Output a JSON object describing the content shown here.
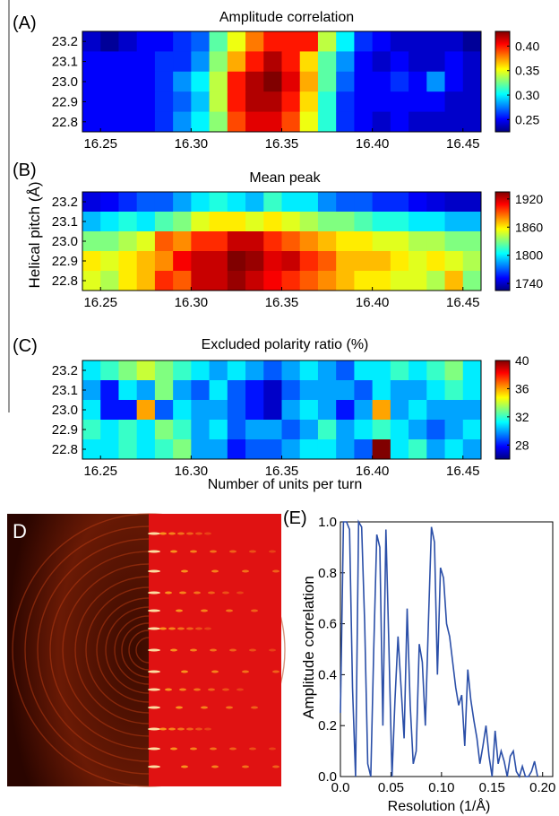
{
  "shared": {
    "ylabel": "Helical pitch (Å)",
    "xlabel": "Number of units per turn"
  },
  "panel_d": {
    "label": "D"
  },
  "chart_data": [
    {
      "type": "heatmap",
      "panel_label": "(A)",
      "title": "Amplitude correlation",
      "x_ticks": [
        "16.25",
        "16.30",
        "16.35",
        "16.40",
        "16.45"
      ],
      "y_ticks": [
        "23.2",
        "23.1",
        "23.0",
        "22.9",
        "22.8"
      ],
      "x_range": [
        16.24,
        16.46
      ],
      "colorbar": {
        "ticks": [
          "0.40",
          "0.35",
          "0.30",
          "0.25"
        ],
        "range": [
          0.225,
          0.43
        ]
      },
      "values": [
        [
          0.24,
          0.23,
          0.24,
          0.25,
          0.25,
          0.26,
          0.27,
          0.32,
          0.35,
          0.38,
          0.4,
          0.4,
          0.4,
          0.34,
          0.3,
          0.26,
          0.25,
          0.24,
          0.24,
          0.24,
          0.24,
          0.23
        ],
        [
          0.25,
          0.25,
          0.25,
          0.25,
          0.26,
          0.26,
          0.28,
          0.33,
          0.37,
          0.4,
          0.42,
          0.4,
          0.36,
          0.32,
          0.28,
          0.25,
          0.24,
          0.25,
          0.24,
          0.24,
          0.25,
          0.24
        ],
        [
          0.25,
          0.25,
          0.25,
          0.25,
          0.26,
          0.28,
          0.3,
          0.34,
          0.4,
          0.42,
          0.43,
          0.41,
          0.37,
          0.32,
          0.27,
          0.25,
          0.25,
          0.26,
          0.25,
          0.28,
          0.25,
          0.24
        ],
        [
          0.25,
          0.25,
          0.25,
          0.25,
          0.26,
          0.27,
          0.29,
          0.34,
          0.4,
          0.42,
          0.42,
          0.4,
          0.36,
          0.31,
          0.26,
          0.25,
          0.25,
          0.25,
          0.25,
          0.25,
          0.24,
          0.24
        ],
        [
          0.25,
          0.25,
          0.25,
          0.25,
          0.26,
          0.28,
          0.3,
          0.33,
          0.39,
          0.41,
          0.41,
          0.39,
          0.35,
          0.31,
          0.26,
          0.25,
          0.24,
          0.25,
          0.24,
          0.24,
          0.24,
          0.24
        ]
      ]
    },
    {
      "type": "heatmap",
      "panel_label": "(B)",
      "title": "Mean peak",
      "x_ticks": [
        "16.25",
        "16.30",
        "16.35",
        "16.40",
        "16.45"
      ],
      "y_ticks": [
        "23.2",
        "23.1",
        "23.0",
        "22.9",
        "22.8"
      ],
      "x_range": [
        16.24,
        16.46
      ],
      "colorbar": {
        "ticks": [
          "1920",
          "1860",
          "1800",
          "1740"
        ],
        "range": [
          1725,
          1935
        ]
      },
      "values": [
        [
          1745,
          1750,
          1760,
          1770,
          1770,
          1785,
          1800,
          1810,
          1800,
          1790,
          1815,
          1800,
          1800,
          1780,
          1770,
          1770,
          1760,
          1760,
          1750,
          1745,
          1740,
          1740
        ],
        [
          1790,
          1800,
          1810,
          1800,
          1820,
          1830,
          1850,
          1860,
          1860,
          1850,
          1860,
          1850,
          1840,
          1830,
          1830,
          1820,
          1810,
          1810,
          1800,
          1800,
          1790,
          1790
        ],
        [
          1830,
          1830,
          1840,
          1850,
          1890,
          1880,
          1900,
          1900,
          1920,
          1920,
          1900,
          1890,
          1880,
          1870,
          1860,
          1860,
          1850,
          1850,
          1840,
          1840,
          1830,
          1830
        ],
        [
          1860,
          1850,
          1860,
          1870,
          1880,
          1910,
          1920,
          1920,
          1935,
          1930,
          1915,
          1920,
          1900,
          1890,
          1870,
          1870,
          1870,
          1860,
          1850,
          1860,
          1850,
          1840
        ],
        [
          1850,
          1840,
          1860,
          1870,
          1900,
          1890,
          1920,
          1920,
          1930,
          1920,
          1910,
          1900,
          1890,
          1880,
          1870,
          1860,
          1860,
          1850,
          1850,
          1840,
          1870,
          1830
        ]
      ]
    },
    {
      "type": "heatmap",
      "panel_label": "(C)",
      "title": "Excluded polarity ratio (%)",
      "x_ticks": [
        "16.25",
        "16.30",
        "16.35",
        "16.40",
        "16.45"
      ],
      "y_ticks": [
        "23.2",
        "23.1",
        "23.0",
        "22.9",
        "22.8"
      ],
      "x_range": [
        16.24,
        16.46
      ],
      "colorbar": {
        "ticks": [
          "40",
          "36",
          "32",
          "28"
        ],
        "range": [
          26,
          40
        ]
      },
      "values": [
        [
          31,
          32,
          33,
          34,
          33,
          32,
          31,
          30,
          31,
          30,
          29,
          30,
          31,
          30,
          29,
          31,
          31,
          32,
          31,
          32,
          33,
          31
        ],
        [
          30,
          28,
          31,
          30,
          33,
          30,
          29,
          31,
          29,
          28,
          27,
          29,
          30,
          30,
          30,
          29,
          31,
          30,
          30,
          31,
          32,
          31
        ],
        [
          31,
          28,
          28,
          36,
          29,
          31,
          30,
          30,
          29,
          28,
          27,
          30,
          31,
          30,
          28,
          30,
          36,
          30,
          31,
          30,
          30,
          30
        ],
        [
          32,
          31,
          32,
          31,
          33,
          32,
          30,
          31,
          29,
          30,
          30,
          29,
          30,
          32,
          30,
          31,
          32,
          31,
          30,
          29,
          30,
          31
        ],
        [
          31,
          31,
          32,
          31,
          32,
          33,
          30,
          30,
          28,
          29,
          29,
          30,
          31,
          31,
          30,
          29,
          40,
          31,
          32,
          30,
          31,
          30
        ]
      ]
    },
    {
      "type": "line",
      "panel_label": "(E)",
      "xlabel": "Resolution (1/Å)",
      "ylabel": "Amplitude correlation",
      "xlim": [
        0.0,
        0.21
      ],
      "ylim": [
        0.0,
        1.0
      ],
      "x_ticks": [
        "0.0",
        "0.05",
        "0.10",
        "0.15",
        "0.20"
      ],
      "y_ticks": [
        "0.0",
        "0.2",
        "0.4",
        "0.6",
        "0.8",
        "1.0"
      ],
      "series": [
        {
          "x": [
            0.0,
            0.003,
            0.006,
            0.009,
            0.012,
            0.015,
            0.018,
            0.021,
            0.024,
            0.027,
            0.03,
            0.033,
            0.036,
            0.039,
            0.042,
            0.045,
            0.048,
            0.051,
            0.054,
            0.057,
            0.06,
            0.063,
            0.066,
            0.069,
            0.072,
            0.075,
            0.078,
            0.081,
            0.084,
            0.087,
            0.09,
            0.093,
            0.096,
            0.099,
            0.102,
            0.105,
            0.108,
            0.111,
            0.114,
            0.117,
            0.12,
            0.123,
            0.126,
            0.129,
            0.132,
            0.135,
            0.138,
            0.141,
            0.144,
            0.147,
            0.15,
            0.153,
            0.156,
            0.159,
            0.162,
            0.165,
            0.168,
            0.171,
            0.174,
            0.177,
            0.18,
            0.183,
            0.186,
            0.189,
            0.192,
            0.195
          ],
          "y": [
            0.25,
            1.0,
            1.0,
            0.97,
            0.35,
            0.0,
            1.0,
            0.98,
            0.6,
            0.05,
            0.0,
            0.5,
            0.95,
            0.9,
            0.2,
            0.97,
            0.5,
            0.0,
            0.3,
            0.55,
            0.35,
            0.15,
            0.66,
            0.28,
            0.05,
            0.1,
            0.52,
            0.45,
            0.2,
            0.6,
            0.98,
            0.92,
            0.4,
            0.82,
            0.78,
            0.6,
            0.55,
            0.45,
            0.35,
            0.28,
            0.32,
            0.12,
            0.42,
            0.3,
            0.22,
            0.15,
            0.05,
            0.12,
            0.2,
            0.08,
            0.0,
            0.18,
            0.05,
            0.1,
            0.06,
            0.0,
            0.08,
            0.1,
            0.02,
            0.0,
            0.04,
            0.0,
            0.0,
            0.02,
            0.06,
            0.0
          ]
        }
      ]
    }
  ]
}
